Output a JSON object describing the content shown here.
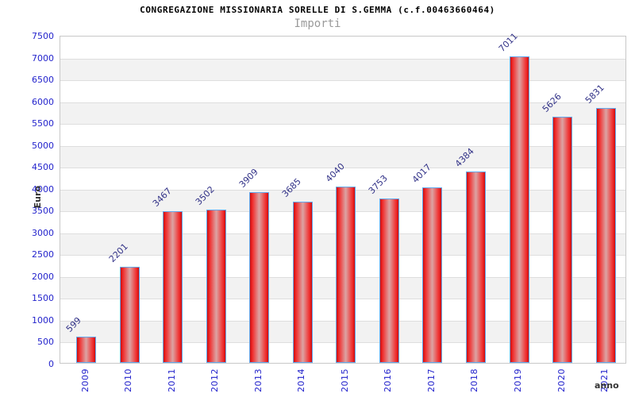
{
  "header": {
    "title": "CONGREGAZIONE MISSIONARIA SORELLE DI S.GEMMA (c.f.00463660464)",
    "subtitle": "Importi"
  },
  "chart_data": {
    "type": "bar",
    "title": "CONGREGAZIONE MISSIONARIA SORELLE DI S.GEMMA (c.f.00463660464)",
    "subtitle": "Importi",
    "xlabel": "anno",
    "ylabel": "Euro",
    "categories": [
      "2009",
      "2010",
      "2011",
      "2012",
      "2013",
      "2014",
      "2015",
      "2016",
      "2017",
      "2018",
      "2019",
      "2020",
      "2021"
    ],
    "values": [
      599,
      2201,
      3467,
      3502,
      3909,
      3685,
      4040,
      3753,
      4017,
      4384,
      7011,
      5626,
      5831
    ],
    "ylim": [
      0,
      7500
    ],
    "ytick_step": 500,
    "grid": "horizontal-bands",
    "legend": "none",
    "colors": {
      "bar_fill_edge": "#cf0d0d",
      "bar_fill_center": "#dca4a4",
      "bar_border": "#64a8ec",
      "tick_label": "#2323cc",
      "value_label": "#333388",
      "band_gray": "#f2f2f2",
      "grid_line": "#dedede",
      "plot_border": "#c8c8c8",
      "axis_title": "#333333",
      "title": "#000000",
      "subtitle": "#9a9a9a"
    }
  }
}
